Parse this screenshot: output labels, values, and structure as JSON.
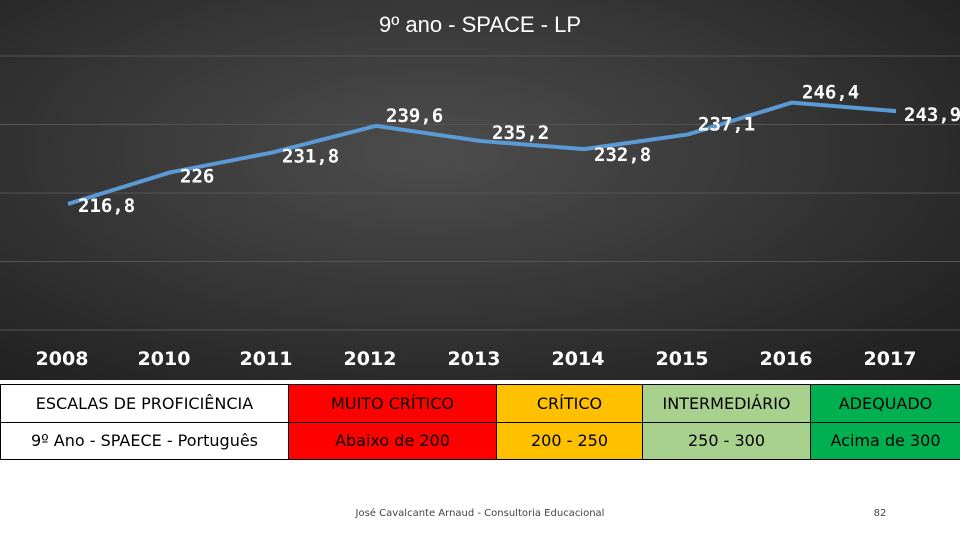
{
  "chart_data": {
    "type": "line",
    "title": "9º ano - SPACE - LP",
    "categories": [
      "2008",
      "2010",
      "2011",
      "2012",
      "2013",
      "2014",
      "2015",
      "2016",
      "2017"
    ],
    "series": [
      {
        "values": [
          216.8,
          226,
          231.8,
          239.6,
          235.2,
          232.8,
          237.1,
          246.4,
          243.9
        ],
        "labels": [
          "216,8",
          "226",
          "231,8",
          "239,6",
          "235,2",
          "232,8",
          "237,1",
          "246,4",
          "243,9"
        ]
      }
    ],
    "ylim": [
      180,
      260
    ],
    "grid": true,
    "line_color": "#5b9bd5",
    "grid_color": "#555555"
  },
  "scale_table": {
    "header_row": {
      "label": "ESCALAS DE PROFICIÊNCIA",
      "levels": [
        "MUITO CRÍTICO",
        "CRÍTICO",
        "INTERMEDIÁRIO",
        "ADEQUADO"
      ]
    },
    "value_row": {
      "label": "9º Ano - SPAECE - Português",
      "ranges": [
        "Abaixo de 200",
        "200 - 250",
        "250 - 300",
        "Acima de 300"
      ]
    },
    "level_colors": [
      "#ff0000",
      "#ffc000",
      "#a9d18e",
      "#00b050"
    ]
  },
  "footer": {
    "credit": "José Cavalcante Arnaud - Consultoria Educacional",
    "page_number": "82"
  }
}
